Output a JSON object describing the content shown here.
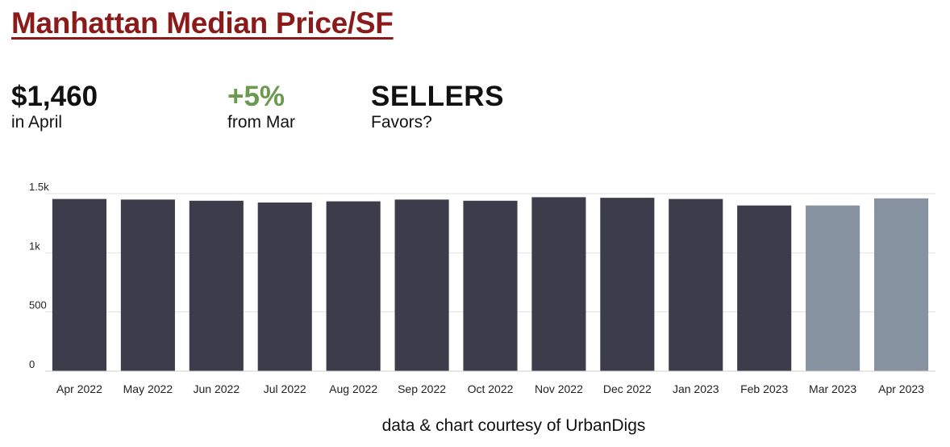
{
  "title": "Manhattan Median Price/SF",
  "stats": [
    {
      "value": "$1,460",
      "caption": "in April",
      "color": "#111111"
    },
    {
      "value": "+5%",
      "caption": "from Mar",
      "color": "#6a9a50"
    },
    {
      "value": "SELLERS",
      "caption": "Favors?",
      "color": "#111111"
    }
  ],
  "footer": "data & chart courtesy of UrbanDigs",
  "chart_data": {
    "type": "bar",
    "categories": [
      "Apr 2022",
      "May 2022",
      "Jun 2022",
      "Jul 2022",
      "Aug 2022",
      "Sep 2022",
      "Oct 2022",
      "Nov 2022",
      "Dec 2022",
      "Jan 2023",
      "Feb 2023",
      "Mar 2023",
      "Apr 2023"
    ],
    "values": [
      1455,
      1450,
      1440,
      1425,
      1435,
      1450,
      1440,
      1470,
      1465,
      1455,
      1400,
      1400,
      1460
    ],
    "bar_colors": [
      "#3d3c4a",
      "#3d3c4a",
      "#3d3c4a",
      "#3d3c4a",
      "#3d3c4a",
      "#3d3c4a",
      "#3d3c4a",
      "#3d3c4a",
      "#3d3c4a",
      "#3d3c4a",
      "#3d3c4a",
      "#86929f",
      "#86929f"
    ],
    "yticks": [
      {
        "value": 0,
        "label": "0"
      },
      {
        "value": 500,
        "label": "500"
      },
      {
        "value": 1000,
        "label": "1k"
      },
      {
        "value": 1500,
        "label": "1.5k"
      }
    ],
    "ylim": [
      0,
      1500
    ],
    "grid": true,
    "legend": "none"
  }
}
